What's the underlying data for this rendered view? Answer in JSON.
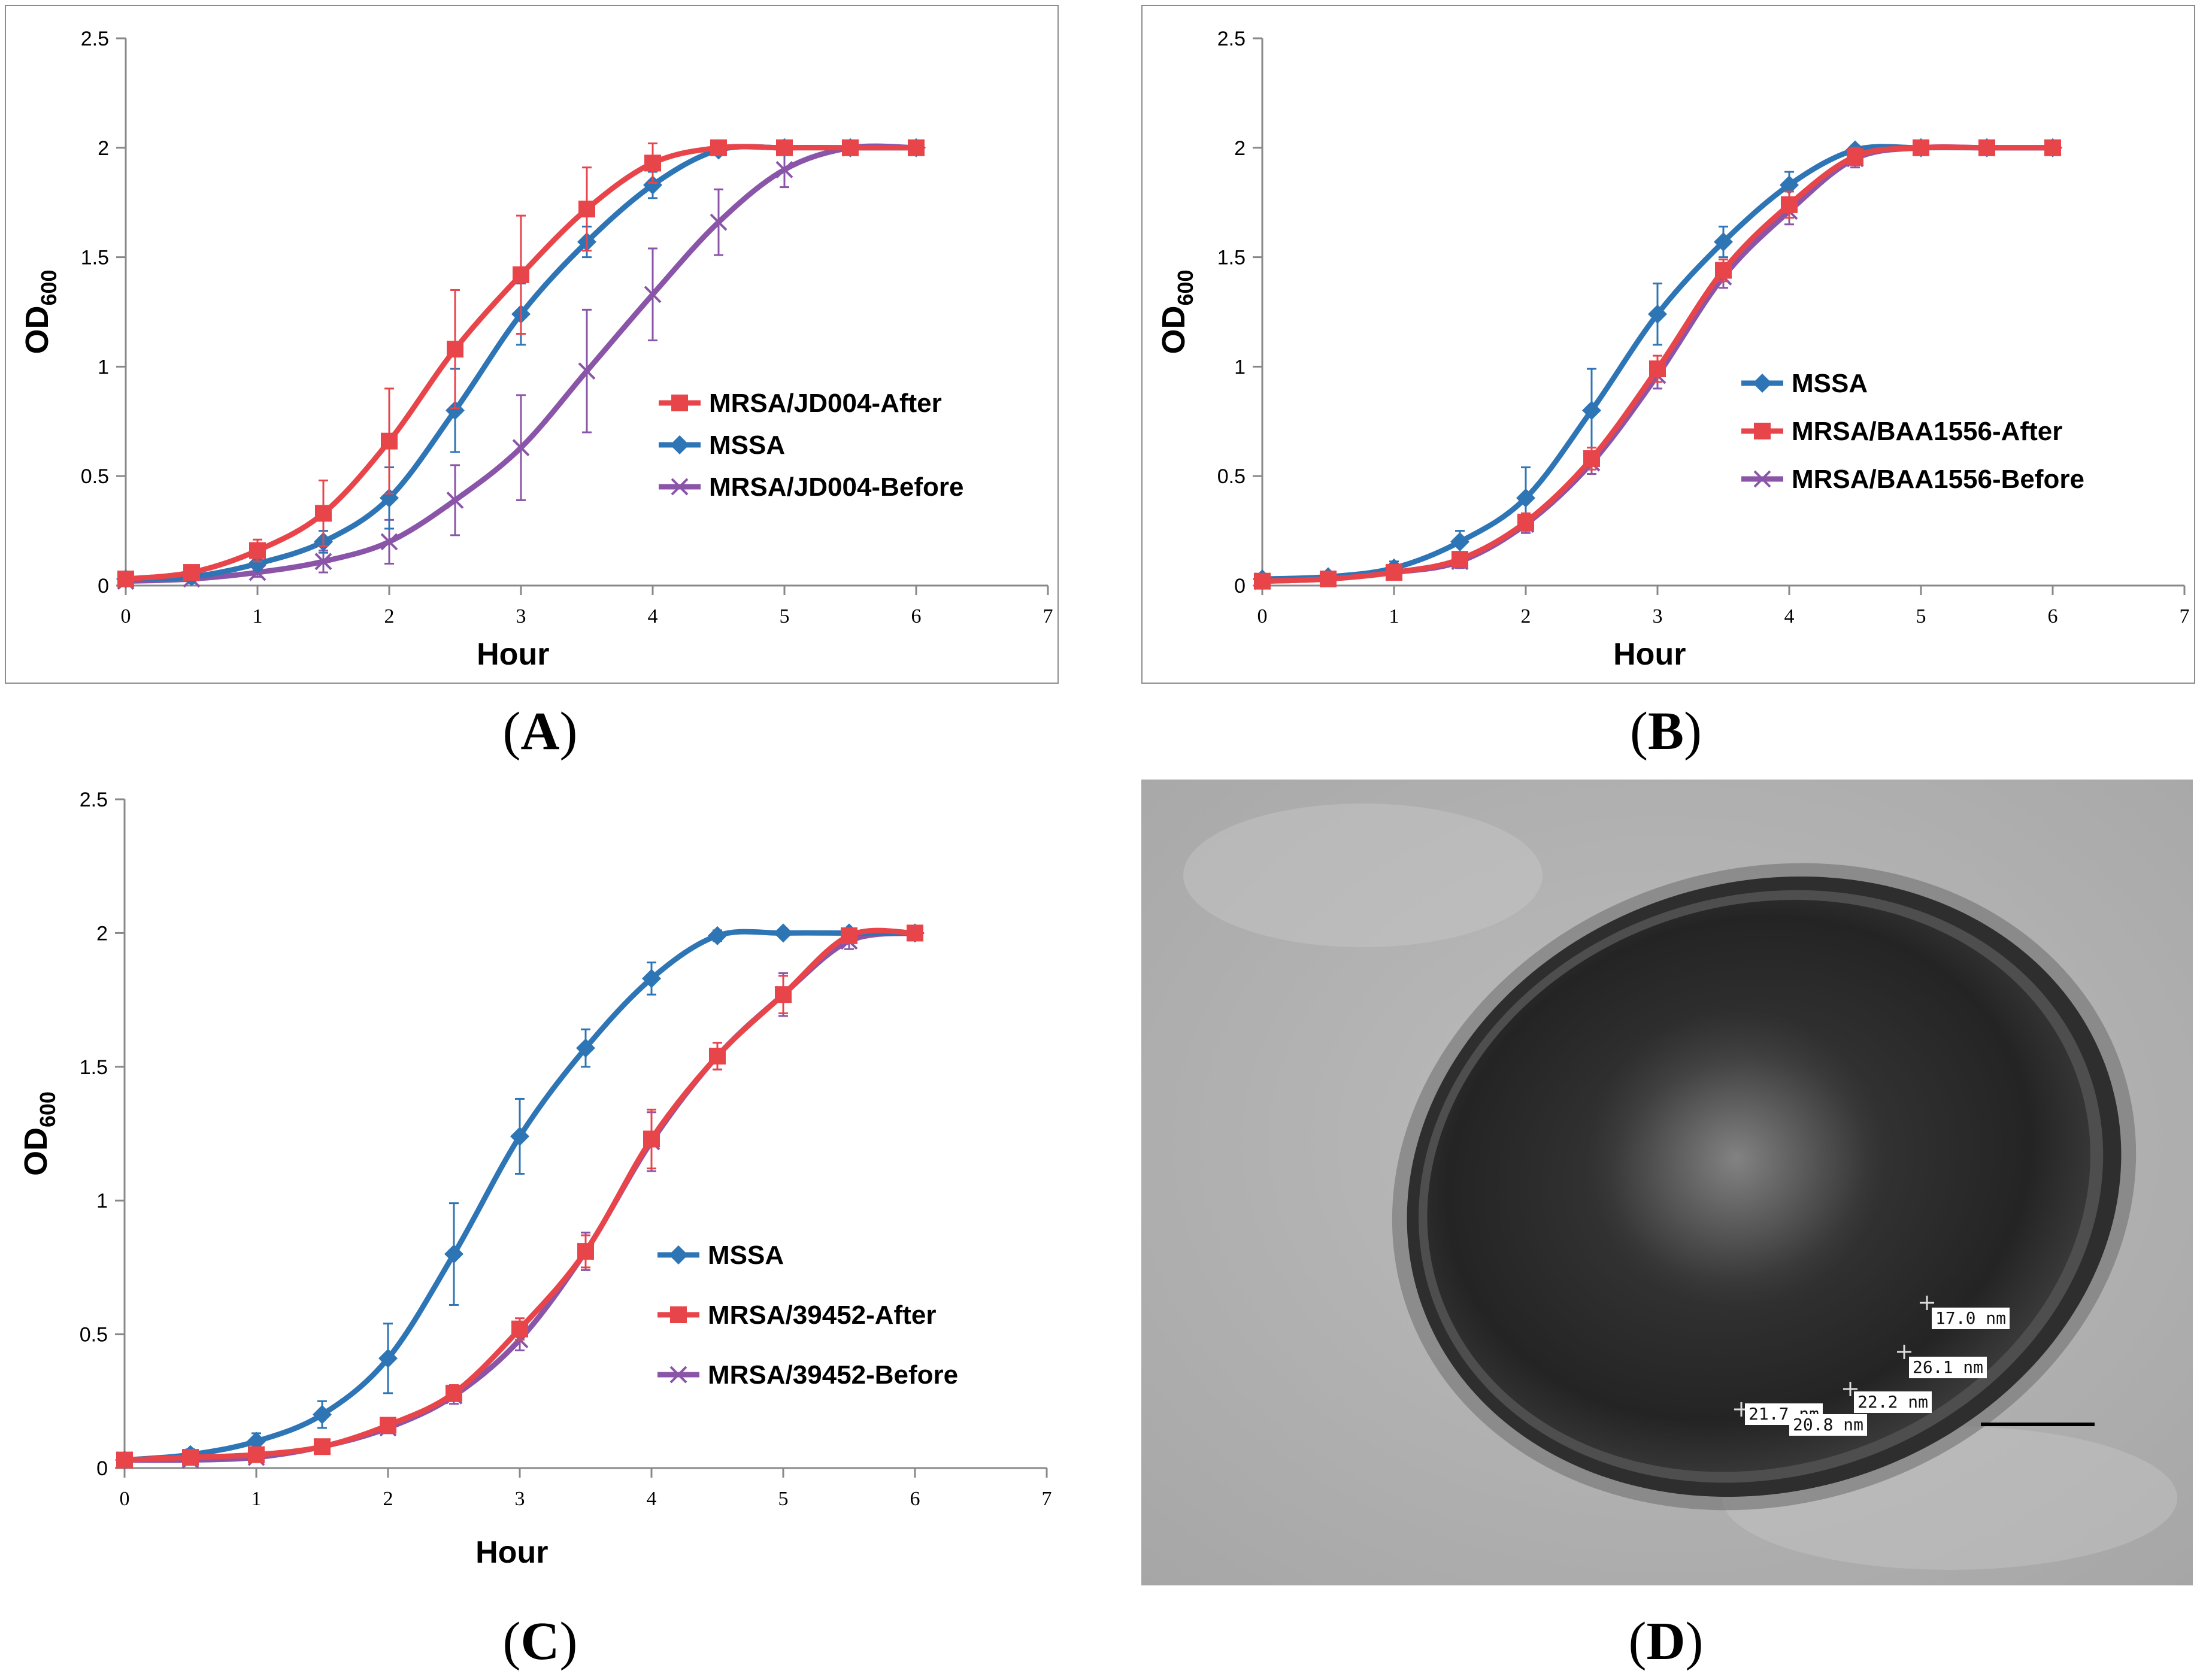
{
  "colors": {
    "mssa": "#2e75b6",
    "after": "#e8454b",
    "before": "#8a55a8",
    "axis": "#888888"
  },
  "chart_data": [
    {
      "id": "A",
      "type": "line",
      "xlabel": "Hour",
      "ylabel_main": "OD",
      "ylabel_sub": "600",
      "xlim": [
        0,
        7
      ],
      "ylim": [
        0,
        2.5
      ],
      "x_ticks": [
        "0",
        "1",
        "2",
        "3",
        "4",
        "5",
        "6",
        "7"
      ],
      "y_ticks": [
        "0",
        "0.5",
        "1",
        "1.5",
        "2",
        "2.5"
      ],
      "legend_order": [
        "after",
        "mssa",
        "before"
      ],
      "x": [
        0,
        0.5,
        1,
        1.5,
        2,
        2.5,
        3,
        3.5,
        4,
        4.5,
        5,
        5.5,
        6
      ],
      "series": [
        {
          "key": "after",
          "name": "MRSA/JD004-After",
          "marker": "square",
          "values": [
            0.03,
            0.06,
            0.16,
            0.33,
            0.66,
            1.08,
            1.42,
            1.72,
            1.93,
            2.0,
            2.0,
            2.0,
            2.0
          ],
          "errors": [
            0.02,
            0.02,
            0.05,
            0.15,
            0.24,
            0.27,
            0.27,
            0.19,
            0.09,
            0.01,
            0.01,
            0.01,
            0.01
          ]
        },
        {
          "key": "mssa",
          "name": "MSSA",
          "marker": "diamond",
          "values": [
            0.03,
            0.04,
            0.1,
            0.2,
            0.4,
            0.8,
            1.24,
            1.57,
            1.83,
            1.99,
            2.0,
            2.0,
            2.0
          ],
          "errors": [
            0.01,
            0.02,
            0.03,
            0.05,
            0.14,
            0.19,
            0.14,
            0.07,
            0.06,
            0.02,
            0.01,
            0.01,
            0.01
          ]
        },
        {
          "key": "before",
          "name": "MRSA/JD004-Before",
          "marker": "cross",
          "values": [
            0.02,
            0.03,
            0.06,
            0.11,
            0.2,
            0.39,
            0.63,
            0.98,
            1.33,
            1.66,
            1.9,
            2.0,
            2.0
          ],
          "errors": [
            0.01,
            0.01,
            0.02,
            0.05,
            0.1,
            0.16,
            0.24,
            0.28,
            0.21,
            0.15,
            0.08,
            0.02,
            0.01
          ]
        }
      ]
    },
    {
      "id": "B",
      "type": "line",
      "xlabel": "Hour",
      "ylabel_main": "OD",
      "ylabel_sub": "600",
      "xlim": [
        0,
        7
      ],
      "ylim": [
        0,
        2.5
      ],
      "x_ticks": [
        "0",
        "1",
        "2",
        "3",
        "4",
        "5",
        "6",
        "7"
      ],
      "y_ticks": [
        "0",
        "0.5",
        "1",
        "1.5",
        "2",
        "2.5"
      ],
      "legend_order": [
        "mssa",
        "after",
        "before"
      ],
      "x": [
        0,
        0.5,
        1,
        1.5,
        2,
        2.5,
        3,
        3.5,
        4,
        4.5,
        5,
        5.5,
        6
      ],
      "series": [
        {
          "key": "mssa",
          "name": "MSSA",
          "marker": "diamond",
          "values": [
            0.03,
            0.04,
            0.08,
            0.2,
            0.4,
            0.8,
            1.24,
            1.57,
            1.83,
            1.99,
            2.0,
            2.0,
            2.0
          ],
          "errors": [
            0.01,
            0.02,
            0.03,
            0.05,
            0.14,
            0.19,
            0.14,
            0.07,
            0.06,
            0.02,
            0.01,
            0.01,
            0.01
          ]
        },
        {
          "key": "after",
          "name": "MRSA/BAA1556-After",
          "marker": "square",
          "values": [
            0.02,
            0.03,
            0.06,
            0.12,
            0.29,
            0.58,
            0.99,
            1.44,
            1.74,
            1.96,
            2.0,
            2.0,
            2.0
          ],
          "errors": [
            0.01,
            0.01,
            0.02,
            0.03,
            0.04,
            0.05,
            0.06,
            0.05,
            0.06,
            0.04,
            0.01,
            0.01,
            0.01
          ]
        },
        {
          "key": "before",
          "name": "MRSA/BAA1556-Before",
          "marker": "cross",
          "values": [
            0.02,
            0.03,
            0.06,
            0.11,
            0.28,
            0.56,
            0.96,
            1.41,
            1.71,
            1.95,
            2.0,
            2.0,
            2.0
          ],
          "errors": [
            0.01,
            0.01,
            0.02,
            0.03,
            0.04,
            0.05,
            0.06,
            0.05,
            0.06,
            0.04,
            0.01,
            0.01,
            0.01
          ]
        }
      ]
    },
    {
      "id": "C",
      "type": "line",
      "xlabel": "Hour",
      "ylabel_main": "OD",
      "ylabel_sub": "600",
      "xlim": [
        0,
        7
      ],
      "ylim": [
        0,
        2.5
      ],
      "x_ticks": [
        "0",
        "1",
        "2",
        "3",
        "4",
        "5",
        "6",
        "7"
      ],
      "y_ticks": [
        "0",
        "0.5",
        "1",
        "1.5",
        "2",
        "2.5"
      ],
      "legend_order": [
        "mssa",
        "after",
        "before"
      ],
      "x": [
        0,
        0.5,
        1,
        1.5,
        2,
        2.5,
        3,
        3.5,
        4,
        4.5,
        5,
        5.5,
        6
      ],
      "series": [
        {
          "key": "mssa",
          "name": "MSSA",
          "marker": "diamond",
          "values": [
            0.03,
            0.05,
            0.1,
            0.2,
            0.41,
            0.8,
            1.24,
            1.57,
            1.83,
            1.99,
            2.0,
            2.0,
            2.0
          ],
          "errors": [
            0.01,
            0.02,
            0.03,
            0.05,
            0.13,
            0.19,
            0.14,
            0.07,
            0.06,
            0.02,
            0.01,
            0.01,
            0.01
          ]
        },
        {
          "key": "after",
          "name": "MRSA/39452-After",
          "marker": "square",
          "values": [
            0.03,
            0.04,
            0.05,
            0.08,
            0.16,
            0.28,
            0.52,
            0.81,
            1.23,
            1.54,
            1.77,
            1.99,
            2.0
          ],
          "errors": [
            0.01,
            0.01,
            0.01,
            0.02,
            0.02,
            0.03,
            0.04,
            0.06,
            0.11,
            0.05,
            0.07,
            0.02,
            0.01
          ]
        },
        {
          "key": "before",
          "name": "MRSA/39452-Before",
          "marker": "cross",
          "values": [
            0.03,
            0.03,
            0.04,
            0.08,
            0.15,
            0.27,
            0.48,
            0.81,
            1.22,
            1.54,
            1.77,
            1.97,
            2.0
          ],
          "errors": [
            0.01,
            0.01,
            0.01,
            0.02,
            0.02,
            0.03,
            0.04,
            0.07,
            0.11,
            0.05,
            0.08,
            0.03,
            0.01
          ]
        }
      ]
    }
  ],
  "captions": {
    "a": "A",
    "b": "B",
    "c": "C",
    "d": "D"
  },
  "micrograph": {
    "measurements": [
      "17.0 nm",
      "26.1 nm",
      "22.2 nm",
      "21.7 nm",
      "20.8 nm"
    ]
  }
}
